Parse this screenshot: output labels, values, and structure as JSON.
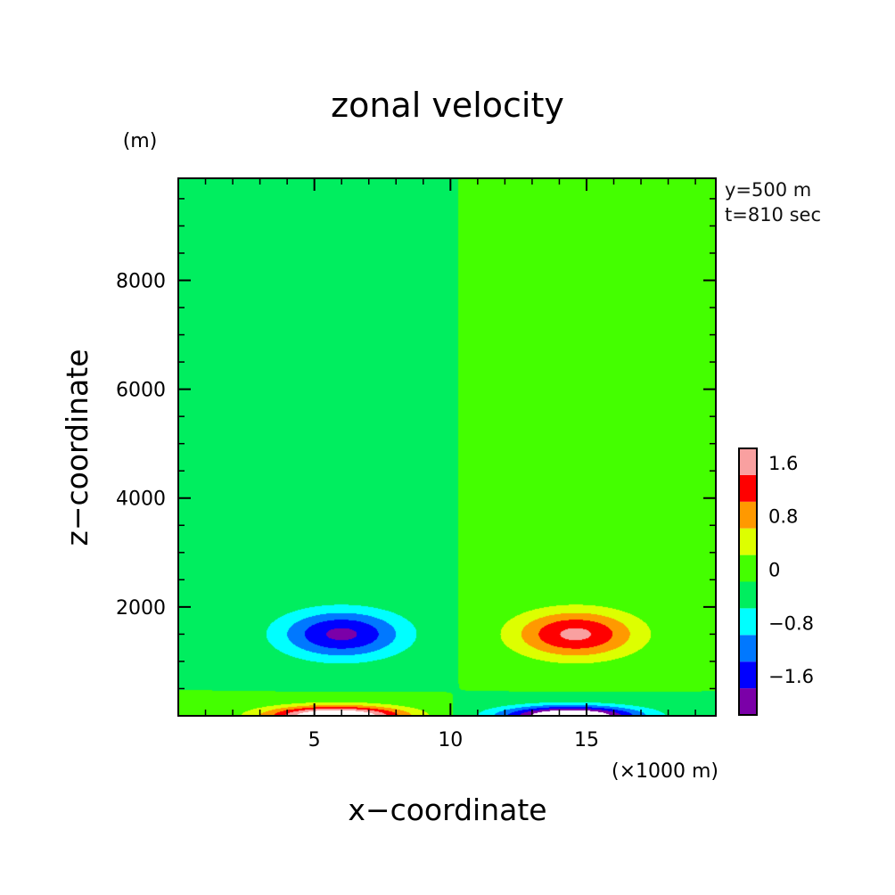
{
  "chart_data": {
    "type": "heatmap",
    "title": "zonal velocity",
    "xlabel": "x−coordinate",
    "ylabel": "z−coordinate",
    "x_unit": "(×1000 m)",
    "y_unit": "(m)",
    "annotations": [
      "y=500 m",
      "t=810 sec"
    ],
    "xlim": [
      0,
      19.75
    ],
    "ylim": [
      0,
      9875
    ],
    "x_ticks": [
      {
        "value": 5,
        "label": "5"
      },
      {
        "value": 10,
        "label": "10"
      },
      {
        "value": 15,
        "label": "15"
      }
    ],
    "y_ticks": [
      {
        "value": 2000,
        "label": "2000"
      },
      {
        "value": 4000,
        "label": "4000"
      },
      {
        "value": 6000,
        "label": "6000"
      },
      {
        "value": 8000,
        "label": "8000"
      }
    ],
    "colorbar": {
      "levels": [
        -2.0,
        -1.6,
        -1.2,
        -0.8,
        -0.4,
        0,
        0.4,
        0.8,
        1.2,
        1.6,
        2.0
      ],
      "colors": [
        "#7b00a8",
        "#0000ff",
        "#0078ff",
        "#00ffff",
        "#00ee5f",
        "#44ff00",
        "#ddff00",
        "#ff9900",
        "#ff0000",
        "#f9a0a0"
      ],
      "tick_labels": [
        {
          "value": -1.6,
          "label": "−1.6"
        },
        {
          "value": -0.8,
          "label": "−0.8"
        },
        {
          "value": 0,
          "label": "0"
        },
        {
          "value": 0.8,
          "label": "0.8"
        },
        {
          "value": 1.6,
          "label": "1.6"
        }
      ]
    },
    "features": [
      {
        "type": "cell",
        "x": 6.0,
        "z": 1500,
        "sx": 2.3,
        "sz": 450,
        "amplitude": -1.7
      },
      {
        "type": "cell",
        "x": 14.6,
        "z": 1500,
        "sx": 2.3,
        "sz": 450,
        "amplitude": 1.7
      },
      {
        "type": "cell",
        "x": 5.8,
        "z": 0,
        "sx": 2.5,
        "sz": 180,
        "amplitude": 2.8
      },
      {
        "type": "cell",
        "x": 14.4,
        "z": 0,
        "sx": 2.5,
        "sz": 180,
        "amplitude": -2.8
      }
    ]
  }
}
